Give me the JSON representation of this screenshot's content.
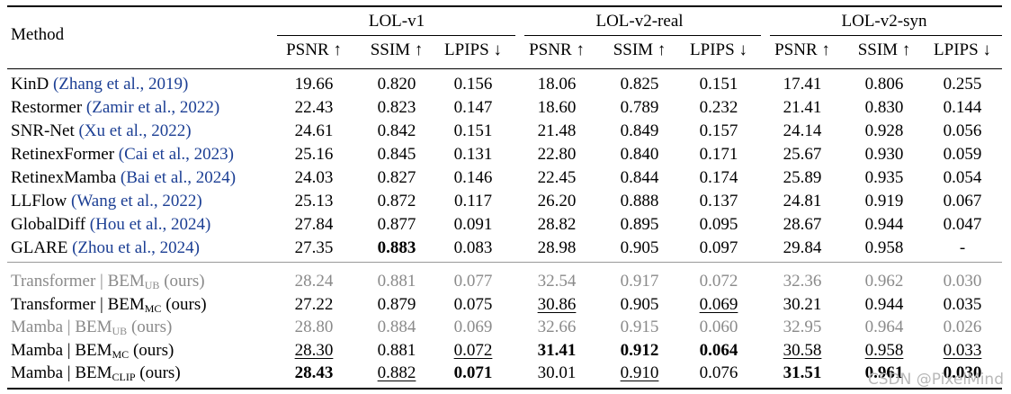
{
  "header": {
    "method": "Method",
    "groups": [
      "LOL-v1",
      "LOL-v2-real",
      "LOL-v2-syn"
    ],
    "metrics": [
      "PSNR ↑",
      "SSIM ↑",
      "LPIPS ↓"
    ]
  },
  "rows": [
    {
      "name": "KinD",
      "cite": "(Zhang et al., 2019)",
      "vals": [
        "19.66",
        "0.820",
        "0.156",
        "18.06",
        "0.825",
        "0.151",
        "17.41",
        "0.806",
        "0.255"
      ],
      "bold": [],
      "under": []
    },
    {
      "name": "Restormer",
      "cite": "(Zamir et al., 2022)",
      "vals": [
        "22.43",
        "0.823",
        "0.147",
        "18.60",
        "0.789",
        "0.232",
        "21.41",
        "0.830",
        "0.144"
      ],
      "bold": [],
      "under": []
    },
    {
      "name": "SNR-Net",
      "cite": "(Xu et al., 2022)",
      "vals": [
        "24.61",
        "0.842",
        "0.151",
        "21.48",
        "0.849",
        "0.157",
        "24.14",
        "0.928",
        "0.056"
      ],
      "bold": [],
      "under": []
    },
    {
      "name": "RetinexFormer",
      "cite": "(Cai et al., 2023)",
      "vals": [
        "25.16",
        "0.845",
        "0.131",
        "22.80",
        "0.840",
        "0.171",
        "25.67",
        "0.930",
        "0.059"
      ],
      "bold": [],
      "under": []
    },
    {
      "name": "RetinexMamba",
      "cite": "(Bai et al., 2024)",
      "vals": [
        "24.03",
        "0.827",
        "0.146",
        "22.45",
        "0.844",
        "0.174",
        "25.89",
        "0.935",
        "0.054"
      ],
      "bold": [],
      "under": []
    },
    {
      "name": "LLFlow",
      "cite": "(Wang et al., 2022)",
      "vals": [
        "25.13",
        "0.872",
        "0.117",
        "26.20",
        "0.888",
        "0.137",
        "24.81",
        "0.919",
        "0.067"
      ],
      "bold": [],
      "under": []
    },
    {
      "name": "GlobalDiff",
      "cite": "(Hou et al., 2024)",
      "vals": [
        "27.84",
        "0.877",
        "0.091",
        "28.82",
        "0.895",
        "0.095",
        "28.67",
        "0.944",
        "0.047"
      ],
      "bold": [],
      "under": []
    },
    {
      "name": "GLARE",
      "cite": "(Zhou et al., 2024)",
      "vals": [
        "27.35",
        "0.883",
        "0.083",
        "28.98",
        "0.905",
        "0.097",
        "29.84",
        "0.958",
        "-"
      ],
      "bold": [
        1
      ],
      "under": []
    }
  ],
  "ours": [
    {
      "prefix": "Transformer | BEM",
      "sub": "UB",
      "suffix": " (ours)",
      "gray": true,
      "vals": [
        "28.24",
        "0.881",
        "0.077",
        "32.54",
        "0.917",
        "0.072",
        "32.36",
        "0.962",
        "0.030"
      ],
      "bold": [],
      "under": []
    },
    {
      "prefix": "Transformer | BEM",
      "sub": "MC",
      "suffix": " (ours)",
      "gray": false,
      "vals": [
        "27.22",
        "0.879",
        "0.075",
        "30.86",
        "0.905",
        "0.069",
        "30.21",
        "0.944",
        "0.035"
      ],
      "bold": [],
      "under": [
        3,
        5
      ]
    },
    {
      "prefix": "Mamba | BEM",
      "sub": "UB",
      "suffix": " (ours)",
      "gray": true,
      "vals": [
        "28.80",
        "0.884",
        "0.069",
        "32.66",
        "0.915",
        "0.060",
        "32.95",
        "0.964",
        "0.026"
      ],
      "bold": [],
      "under": []
    },
    {
      "prefix": "Mamba | BEM",
      "sub": "MC",
      "suffix": " (ours)",
      "gray": false,
      "vals": [
        "28.30",
        "0.881",
        "0.072",
        "31.41",
        "0.912",
        "0.064",
        "30.58",
        "0.958",
        "0.033"
      ],
      "bold": [
        3,
        4,
        5
      ],
      "under": [
        0,
        2,
        6,
        7,
        8
      ]
    },
    {
      "prefix": "Mamba | BEM",
      "sub": "CLIP",
      "suffix": " (ours)",
      "gray": false,
      "vals": [
        "28.43",
        "0.882",
        "0.071",
        "30.01",
        "0.910",
        "0.076",
        "31.51",
        "0.961",
        "0.030"
      ],
      "bold": [
        0,
        2,
        6,
        7,
        8
      ],
      "under": [
        1,
        4
      ]
    }
  ],
  "watermark": "CSDN @PixelMind"
}
